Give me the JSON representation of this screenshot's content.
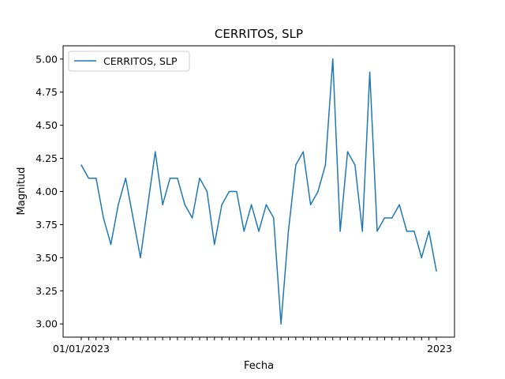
{
  "chart_data": {
    "type": "line",
    "title": "CERRITOS, SLP",
    "xlabel": "Fecha",
    "ylabel": "Magnitud",
    "ylim": [
      2.9,
      5.1
    ],
    "y_ticks": [
      "3.00",
      "3.25",
      "3.50",
      "3.75",
      "4.00",
      "4.25",
      "4.50",
      "4.75",
      "5.00"
    ],
    "x_first_tick_label": "01/01/2023",
    "x_last_tick_label": "2023",
    "legend": {
      "placement": "upper-left",
      "entries": [
        "CERRITOS, SLP"
      ]
    },
    "series": [
      {
        "name": "CERRITOS, SLP",
        "color": "#1f77b4",
        "values": [
          4.2,
          4.1,
          4.1,
          3.8,
          3.6,
          3.9,
          4.1,
          3.8,
          3.5,
          3.9,
          4.3,
          3.9,
          4.1,
          4.1,
          3.9,
          3.8,
          4.1,
          4.0,
          3.6,
          3.9,
          4.0,
          4.0,
          3.7,
          3.9,
          3.7,
          3.9,
          3.8,
          3.0,
          3.7,
          4.2,
          4.3,
          3.9,
          4.0,
          4.2,
          5.0,
          3.7,
          4.3,
          4.2,
          3.7,
          4.9,
          3.7,
          3.8,
          3.8,
          3.9,
          3.7,
          3.7,
          3.5,
          3.7,
          3.4
        ]
      }
    ]
  }
}
